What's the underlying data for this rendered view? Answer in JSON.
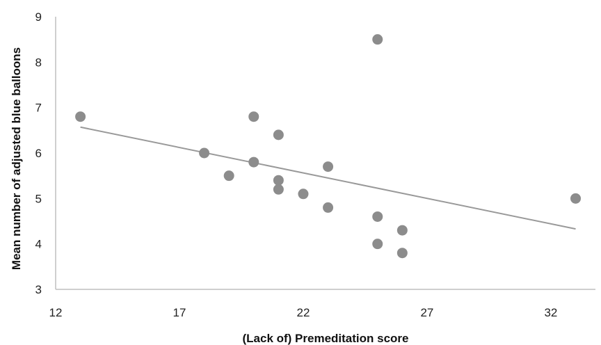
{
  "chart_data": {
    "type": "scatter",
    "title": "",
    "xlabel": "(Lack of) Premeditation score",
    "ylabel": "Mean number of adjusted blue balloons",
    "xlim": [
      12,
      33.8
    ],
    "ylim": [
      3,
      9
    ],
    "xticks": [
      12,
      17,
      22,
      27,
      32
    ],
    "yticks": [
      3,
      4,
      5,
      6,
      7,
      8,
      9
    ],
    "grid": false,
    "legend": "none",
    "colors": {
      "points": "#8c8c8c",
      "trendline": "#999999",
      "axis": "#bfbfbf"
    },
    "series": [
      {
        "points": [
          {
            "x": 13,
            "y": 6.8
          },
          {
            "x": 18,
            "y": 6.0
          },
          {
            "x": 19,
            "y": 5.5
          },
          {
            "x": 20,
            "y": 6.8
          },
          {
            "x": 20,
            "y": 5.8
          },
          {
            "x": 21,
            "y": 6.4
          },
          {
            "x": 21,
            "y": 5.4
          },
          {
            "x": 21,
            "y": 5.2
          },
          {
            "x": 22,
            "y": 5.1
          },
          {
            "x": 23,
            "y": 5.7
          },
          {
            "x": 23,
            "y": 4.8
          },
          {
            "x": 25,
            "y": 8.5
          },
          {
            "x": 25,
            "y": 4.6
          },
          {
            "x": 25,
            "y": 4.0
          },
          {
            "x": 26,
            "y": 4.3
          },
          {
            "x": 26,
            "y": 3.8
          },
          {
            "x": 33,
            "y": 5.0
          }
        ]
      }
    ],
    "trendline": {
      "type": "linear",
      "x": [
        13,
        33
      ],
      "y": [
        6.57,
        4.33
      ]
    }
  }
}
